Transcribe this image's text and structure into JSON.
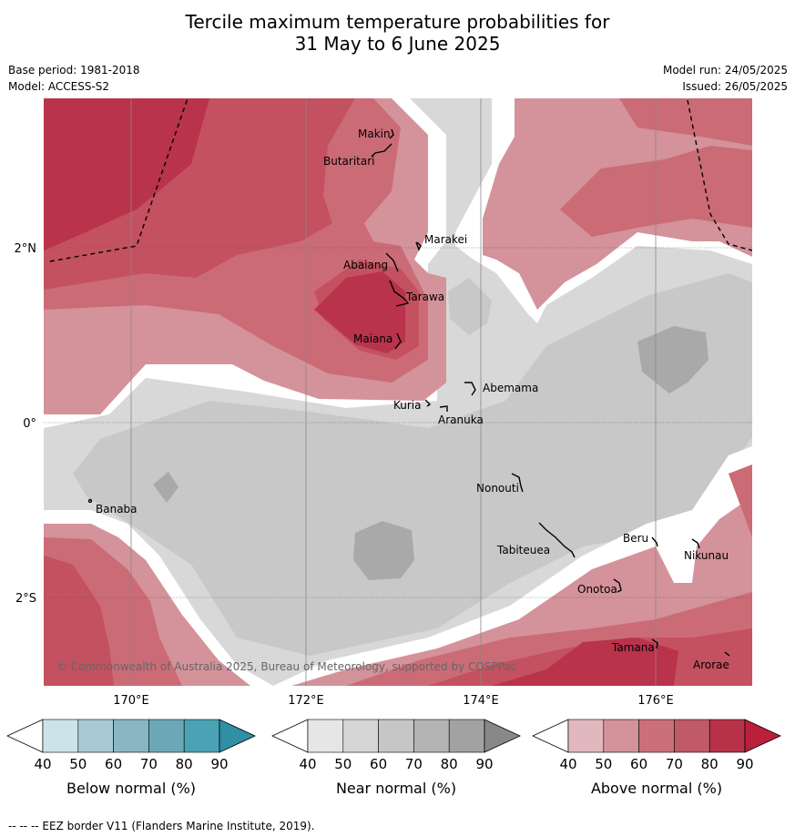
{
  "title": {
    "line1": "Tercile maximum temperature probabilities for",
    "line2": "31 May to 6 June 2025"
  },
  "meta": {
    "base_period": "Base period: 1981-2018",
    "model": "Model: ACCESS-S2",
    "model_run": "Model run: 24/05/2025",
    "issued": "Issued: 26/05/2025"
  },
  "map": {
    "lat_labels": [
      "2°N",
      "0°",
      "2°S"
    ],
    "lon_labels": [
      "170°E",
      "172°E",
      "174°E",
      "176°E"
    ],
    "places": [
      "Makin",
      "Butaritari",
      "Marakei",
      "Abaiang",
      "Tarawa",
      "Maiana",
      "Abemama",
      "Kuria",
      "Aranuka",
      "Banaba",
      "Nonouti",
      "Tabiteuea",
      "Beru",
      "Nikunau",
      "Onotoa",
      "Tamana",
      "Arorae"
    ],
    "copyright": "© Commonwealth of Australia 2025, Bureau of Meteorology, supported by COSPPac"
  },
  "colorbars": [
    {
      "label": "Below normal (%)",
      "ticks": [
        "40",
        "50",
        "60",
        "70",
        "80",
        "90"
      ],
      "colors": [
        "#ffffff",
        "#cde3ea",
        "#a8cad2",
        "#8ab6c3",
        "#6aa8b8",
        "#4aa2b4",
        "#2f8fa5"
      ]
    },
    {
      "label": "Near normal (%)",
      "ticks": [
        "40",
        "50",
        "60",
        "70",
        "80",
        "90"
      ],
      "colors": [
        "#ffffff",
        "#e6e6e6",
        "#d6d6d6",
        "#c6c6c6",
        "#b4b4b4",
        "#a2a2a2",
        "#888888"
      ]
    },
    {
      "label": "Above normal (%)",
      "ticks": [
        "40",
        "50",
        "60",
        "70",
        "80",
        "90"
      ],
      "colors": [
        "#ffffff",
        "#e2b8bf",
        "#d4929a",
        "#cb7079",
        "#c15a67",
        "#b83247",
        "#bb1f3c"
      ]
    }
  ],
  "footnote": "--  --  -- EEZ border V11 (Flanders Marine Institute, 2019)."
}
